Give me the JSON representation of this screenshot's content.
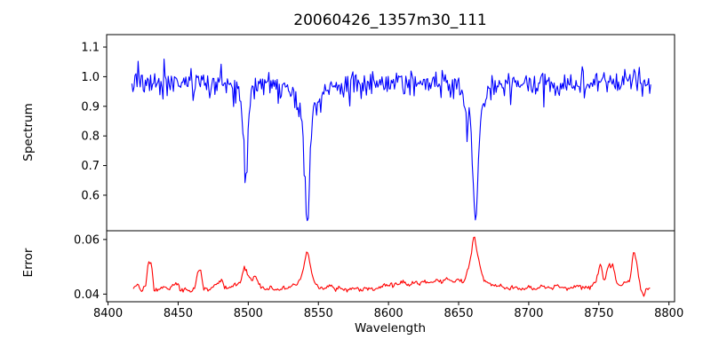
{
  "title": "20060426_1357m30_111",
  "colors": {
    "spectrum_line": "#0000ff",
    "error_line": "#ff0000",
    "axis": "#000000",
    "background": "#ffffff"
  },
  "chart_data": [
    {
      "type": "line",
      "panel": "top",
      "series_name": "spectrum",
      "title": "20060426_1357m30_111",
      "xlabel": "Wavelength",
      "ylabel": "Spectrum",
      "line_color": "#0000ff",
      "xlim": [
        8399,
        8804
      ],
      "ylim": [
        0.48,
        1.142
      ],
      "ytick_values": [
        0.6,
        0.7,
        0.8,
        0.9,
        1.0,
        1.1
      ],
      "ytick_labels": [
        "0.6",
        "0.7",
        "0.8",
        "0.9",
        "1.0",
        "1.1"
      ],
      "grid": false,
      "legend": "none",
      "wl_start": 8417,
      "wl_end": 8787,
      "sampling_step": 0.74,
      "continuum": 0.975,
      "continuum_undulation": {
        "amplitude": 0.006,
        "period": 175
      },
      "noise_sigma": 0.021,
      "spike_down_prob": 0.03,
      "spike_down_max": 0.06,
      "spike_up_prob": 0.02,
      "spike_up_max": 0.045,
      "absorption_lines": [
        {
          "center": 8498.0,
          "core_depth": 0.27,
          "core_sigma": 1.5,
          "wing_depth": 0.05,
          "wing_sigma": 4.0,
          "min_flux": 0.66
        },
        {
          "center": 8542.1,
          "core_depth": 0.36,
          "core_sigma": 1.8,
          "wing_depth": 0.1,
          "wing_sigma": 6.5,
          "min_flux": 0.52
        },
        {
          "center": 8656.0,
          "core_depth": 0.14,
          "core_sigma": 0.5,
          "wing_depth": 0.0,
          "wing_sigma": 1.0,
          "min_flux": 0.8
        },
        {
          "center": 8662.1,
          "core_depth": 0.37,
          "core_sigma": 1.8,
          "wing_depth": 0.1,
          "wing_sigma": 6.0,
          "min_flux": 0.505
        }
      ],
      "seed": 20060426
    },
    {
      "type": "line",
      "panel": "bottom",
      "series_name": "error",
      "ylabel": "Error",
      "line_color": "#ff0000",
      "xlim": [
        8399,
        8804
      ],
      "ylim": [
        0.0372,
        0.0632
      ],
      "ytick_values": [
        0.04,
        0.06
      ],
      "ytick_labels": [
        "0.04",
        "0.06"
      ],
      "xtick_values": [
        8400,
        8450,
        8500,
        8550,
        8600,
        8650,
        8700,
        8750,
        8800
      ],
      "xtick_labels": [
        "8400",
        "8450",
        "8500",
        "8550",
        "8600",
        "8650",
        "8700",
        "8750",
        "8800"
      ],
      "grid": false,
      "legend": "none",
      "sampling_step": 0.74,
      "noise_sigma": 0.0004,
      "keypoints": [
        [
          8418,
          0.0421
        ],
        [
          8421,
          0.0436
        ],
        [
          8424,
          0.0408
        ],
        [
          8427,
          0.044
        ],
        [
          8429,
          0.0521
        ],
        [
          8431,
          0.0506
        ],
        [
          8433,
          0.0413
        ],
        [
          8436,
          0.0419
        ],
        [
          8440,
          0.0427
        ],
        [
          8443,
          0.0414
        ],
        [
          8446,
          0.0437
        ],
        [
          8449,
          0.0441
        ],
        [
          8452,
          0.0414
        ],
        [
          8456,
          0.0417
        ],
        [
          8459,
          0.0411
        ],
        [
          8462,
          0.0426
        ],
        [
          8464,
          0.0487
        ],
        [
          8466,
          0.0493
        ],
        [
          8468,
          0.0421
        ],
        [
          8472,
          0.0414
        ],
        [
          8475,
          0.0429
        ],
        [
          8478,
          0.0438
        ],
        [
          8481,
          0.0452
        ],
        [
          8484,
          0.0424
        ],
        [
          8488,
          0.0429
        ],
        [
          8492,
          0.0437
        ],
        [
          8495,
          0.0452
        ],
        [
          8497,
          0.05
        ],
        [
          8499,
          0.0478
        ],
        [
          8502,
          0.0444
        ],
        [
          8505,
          0.0468
        ],
        [
          8508,
          0.0431
        ],
        [
          8512,
          0.0419
        ],
        [
          8516,
          0.0424
        ],
        [
          8520,
          0.0417
        ],
        [
          8525,
          0.0421
        ],
        [
          8530,
          0.0424
        ],
        [
          8535,
          0.0437
        ],
        [
          8539,
          0.0486
        ],
        [
          8542,
          0.0561
        ],
        [
          8544,
          0.0513
        ],
        [
          8547,
          0.0441
        ],
        [
          8550,
          0.0427
        ],
        [
          8554,
          0.0421
        ],
        [
          8558,
          0.0431
        ],
        [
          8562,
          0.0417
        ],
        [
          8566,
          0.0424
        ],
        [
          8570,
          0.0414
        ],
        [
          8575,
          0.0421
        ],
        [
          8580,
          0.0417
        ],
        [
          8585,
          0.0424
        ],
        [
          8590,
          0.0419
        ],
        [
          8595,
          0.0427
        ],
        [
          8600,
          0.0431
        ],
        [
          8605,
          0.0436
        ],
        [
          8610,
          0.0447
        ],
        [
          8614,
          0.0431
        ],
        [
          8618,
          0.0444
        ],
        [
          8622,
          0.0437
        ],
        [
          8626,
          0.0451
        ],
        [
          8630,
          0.0439
        ],
        [
          8634,
          0.0454
        ],
        [
          8638,
          0.0441
        ],
        [
          8642,
          0.0459
        ],
        [
          8646,
          0.0444
        ],
        [
          8650,
          0.0451
        ],
        [
          8654,
          0.0447
        ],
        [
          8658,
          0.0517
        ],
        [
          8661,
          0.0619
        ],
        [
          8663,
          0.0561
        ],
        [
          8666,
          0.0481
        ],
        [
          8669,
          0.0446
        ],
        [
          8672,
          0.0438
        ],
        [
          8676,
          0.0428
        ],
        [
          8680,
          0.0431
        ],
        [
          8685,
          0.0421
        ],
        [
          8690,
          0.0427
        ],
        [
          8695,
          0.0417
        ],
        [
          8700,
          0.0424
        ],
        [
          8705,
          0.0419
        ],
        [
          8710,
          0.0427
        ],
        [
          8715,
          0.0421
        ],
        [
          8720,
          0.0431
        ],
        [
          8725,
          0.0419
        ],
        [
          8730,
          0.0424
        ],
        [
          8735,
          0.0427
        ],
        [
          8740,
          0.0421
        ],
        [
          8745,
          0.0431
        ],
        [
          8748,
          0.0449
        ],
        [
          8751,
          0.0512
        ],
        [
          8754,
          0.0447
        ],
        [
          8757,
          0.0504
        ],
        [
          8760,
          0.0509
        ],
        [
          8763,
          0.0437
        ],
        [
          8766,
          0.0431
        ],
        [
          8769,
          0.0444
        ],
        [
          8772,
          0.0447
        ],
        [
          8775,
          0.0559
        ],
        [
          8777,
          0.0517
        ],
        [
          8780,
          0.0411
        ],
        [
          8782,
          0.0396
        ],
        [
          8784,
          0.0427
        ],
        [
          8787,
          0.0419
        ]
      ],
      "seed": 1357
    }
  ]
}
